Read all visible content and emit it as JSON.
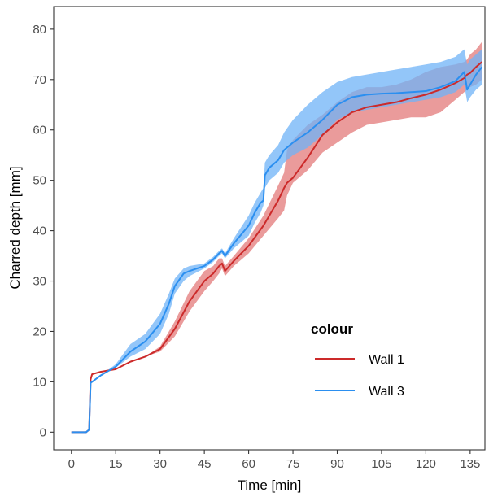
{
  "chart_data": {
    "type": "line",
    "title": "",
    "xlabel": "Time [min]",
    "ylabel": "Charred depth [mm]",
    "xlim": [
      -6,
      140
    ],
    "ylim": [
      -3.5,
      84.5
    ],
    "xticks": [
      0,
      15,
      30,
      45,
      60,
      75,
      90,
      105,
      120,
      135
    ],
    "yticks": [
      0,
      10,
      20,
      30,
      40,
      50,
      60,
      70,
      80
    ],
    "grid": false,
    "legend": {
      "title": "colour",
      "position": "bottom-right"
    },
    "series": [
      {
        "name": "Wall 1",
        "color": "#cc2a2a",
        "band_color": "#e37a7a",
        "x": [
          0,
          5,
          6,
          6.5,
          7,
          10,
          15,
          20,
          25,
          30,
          35,
          40,
          45,
          48,
          50,
          51,
          52,
          55,
          60,
          65,
          70,
          72,
          73,
          75,
          80,
          85,
          90,
          95,
          100,
          105,
          110,
          115,
          120,
          125,
          130,
          133,
          134,
          135,
          137,
          139
        ],
        "y": [
          0,
          0,
          0.5,
          10.5,
          11.5,
          12,
          12.5,
          14,
          15,
          16.5,
          20.5,
          26,
          30,
          31.5,
          33,
          33.5,
          32,
          34,
          37,
          41,
          46,
          48.5,
          49.5,
          50.5,
          54.5,
          59,
          61.5,
          63.5,
          64.5,
          65,
          65.5,
          66.3,
          67,
          68,
          69.3,
          70.3,
          71,
          71.3,
          72.5,
          73.5
        ],
        "lower": [
          0,
          0,
          0.5,
          10.5,
          11.5,
          12,
          12.5,
          14,
          15,
          16,
          19,
          24,
          28,
          30,
          31.5,
          32.5,
          31,
          33,
          35.5,
          39,
          42.5,
          44,
          47,
          49.5,
          52,
          55.5,
          57.5,
          59.5,
          61,
          61.5,
          62,
          62.5,
          62.5,
          63.5,
          66,
          67.5,
          68,
          68.5,
          69,
          70
        ],
        "upper": [
          0,
          0,
          0.5,
          10.5,
          11.5,
          12,
          12.5,
          14,
          15,
          17,
          22,
          28,
          32,
          33,
          34.5,
          34.5,
          33,
          35,
          38.5,
          43,
          49,
          51.5,
          56,
          58,
          61,
          63,
          65.5,
          67.5,
          68.5,
          68.5,
          69,
          70,
          71.5,
          72.5,
          73,
          73.5,
          74,
          75,
          76,
          77.5
        ]
      },
      {
        "name": "Wall 3",
        "color": "#2b8ff0",
        "band_color": "#6fb3f7",
        "x": [
          0,
          5,
          6,
          6.5,
          7,
          10,
          15,
          20,
          25,
          30,
          33,
          35,
          38,
          40,
          45,
          48,
          50,
          51,
          52,
          55,
          60,
          62,
          64,
          65,
          65.5,
          66,
          67,
          70,
          72,
          75,
          80,
          85,
          90,
          95,
          100,
          105,
          110,
          115,
          120,
          125,
          130,
          133,
          134,
          135,
          137,
          139
        ],
        "y": [
          0,
          0,
          0.5,
          9.8,
          10,
          11.3,
          13,
          16,
          18,
          21.5,
          25.5,
          29,
          31.5,
          32,
          33,
          34.3,
          35.5,
          36,
          35,
          37.5,
          41,
          43.5,
          45.5,
          46,
          51,
          51.5,
          52.5,
          54,
          56,
          57.5,
          59.5,
          62,
          65,
          66.5,
          67,
          67.2,
          67.3,
          67.5,
          67.7,
          68.5,
          69.7,
          71.5,
          68,
          69,
          71,
          72.5
        ],
        "lower": [
          0,
          0,
          0.5,
          9.8,
          10,
          11.3,
          12.8,
          15,
          16.5,
          19.5,
          23.5,
          27.5,
          30,
          31,
          32.5,
          33.8,
          35,
          35.5,
          34.5,
          36.5,
          39,
          41.5,
          43.5,
          45,
          48.5,
          49,
          50,
          51.5,
          53.5,
          55,
          56.5,
          59,
          62,
          63.5,
          64,
          64.5,
          65,
          65.5,
          66,
          66.5,
          67.5,
          69,
          65.5,
          66.5,
          68,
          69
        ],
        "upper": [
          0,
          0,
          0.5,
          9.8,
          10,
          11.3,
          13.5,
          17.5,
          19.5,
          23.5,
          27.5,
          30.5,
          32.5,
          33,
          33.5,
          34.8,
          36,
          36.5,
          35.5,
          38.5,
          43,
          45.5,
          47.5,
          48.5,
          53.5,
          54,
          55,
          57,
          59.5,
          62,
          65,
          67.5,
          69.5,
          70.5,
          71,
          71.5,
          72,
          72.5,
          73,
          73.5,
          74.5,
          76,
          73,
          74,
          75,
          76
        ]
      }
    ]
  }
}
